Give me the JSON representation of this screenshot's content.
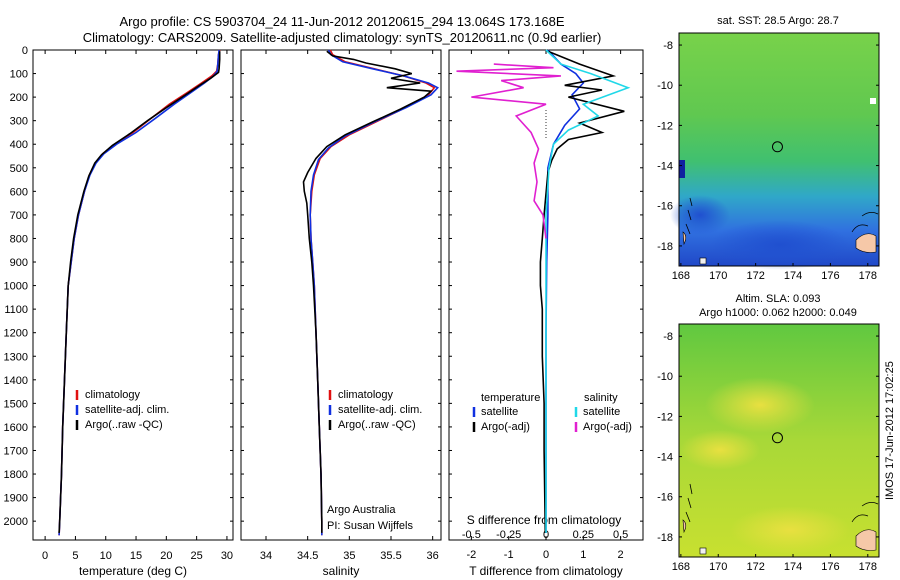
{
  "header": {
    "line1": "Argo profile: CS 5903704_24 11-Jun-2012 20120615_294 13.064S 173.168E",
    "line2": "Climatology: CARS2009. Satellite-adjusted climatology: synTS_20120611.nc (0.9d earlier)"
  },
  "colors": {
    "climatology": "#e01010",
    "satellite": "#1030e0",
    "argo": "#000000",
    "sal_satellite": "#20d8e8",
    "sal_argo": "#e020d0"
  },
  "depth_axis": {
    "ticks": [
      0,
      100,
      200,
      300,
      400,
      500,
      600,
      700,
      800,
      900,
      1000,
      1100,
      1200,
      1300,
      1400,
      1500,
      1600,
      1700,
      1800,
      1900,
      2000
    ]
  },
  "chart_data": [
    {
      "type": "line",
      "name": "temperature-profile",
      "xlabel": "temperature (deg C)",
      "xticks": [
        0,
        5,
        10,
        15,
        20,
        25,
        30
      ],
      "xlim": [
        -2,
        31
      ],
      "ylim": [
        0,
        2080
      ],
      "legend": [
        "climatology",
        "satellite-adj. clim.",
        "Argo(..raw -QC)"
      ],
      "series": [
        {
          "name": "climatology",
          "color": "#e01010",
          "points": [
            [
              28.8,
              0
            ],
            [
              28.6,
              20
            ],
            [
              28.5,
              60
            ],
            [
              28.3,
              90
            ],
            [
              27.5,
              110
            ],
            [
              25.8,
              140
            ],
            [
              23.5,
              180
            ],
            [
              20.5,
              230
            ],
            [
              17.5,
              290
            ],
            [
              14.5,
              350
            ],
            [
              11.5,
              400
            ],
            [
              9.5,
              440
            ],
            [
              8.3,
              480
            ],
            [
              7.3,
              530
            ],
            [
              6.5,
              600
            ],
            [
              5.5,
              700
            ],
            [
              4.8,
              800
            ],
            [
              4.3,
              900
            ],
            [
              3.8,
              1000
            ],
            [
              3.5,
              1200
            ],
            [
              3.2,
              1400
            ],
            [
              2.9,
              1600
            ],
            [
              2.7,
              1800
            ],
            [
              2.4,
              2000
            ],
            [
              2.3,
              2060
            ]
          ]
        },
        {
          "name": "satellite-adj. clim.",
          "color": "#1030e0",
          "points": [
            [
              28.7,
              0
            ],
            [
              28.6,
              20
            ],
            [
              28.5,
              60
            ],
            [
              28.4,
              90
            ],
            [
              27.8,
              110
            ],
            [
              26.3,
              140
            ],
            [
              24.1,
              180
            ],
            [
              21.3,
              230
            ],
            [
              18.2,
              290
            ],
            [
              15.0,
              350
            ],
            [
              11.8,
              400
            ],
            [
              9.7,
              440
            ],
            [
              8.4,
              480
            ],
            [
              7.4,
              530
            ],
            [
              6.5,
              600
            ],
            [
              5.5,
              700
            ],
            [
              4.8,
              800
            ],
            [
              4.3,
              900
            ],
            [
              3.8,
              1000
            ],
            [
              3.5,
              1200
            ],
            [
              3.2,
              1400
            ],
            [
              2.9,
              1600
            ],
            [
              2.7,
              1800
            ],
            [
              2.4,
              2000
            ],
            [
              2.3,
              2060
            ]
          ]
        },
        {
          "name": "Argo(..raw -QC)",
          "color": "#000000",
          "points": [
            [
              28.8,
              5
            ],
            [
              28.8,
              40
            ],
            [
              28.7,
              80
            ],
            [
              28.6,
              95
            ],
            [
              27.3,
              120
            ],
            [
              25.5,
              150
            ],
            [
              23.2,
              190
            ],
            [
              20.0,
              245
            ],
            [
              16.9,
              300
            ],
            [
              14.0,
              355
            ],
            [
              11.1,
              405
            ],
            [
              9.3,
              445
            ],
            [
              8.2,
              480
            ],
            [
              7.2,
              535
            ],
            [
              6.4,
              600
            ],
            [
              5.4,
              700
            ],
            [
              4.7,
              800
            ],
            [
              4.2,
              900
            ],
            [
              3.8,
              1000
            ],
            [
              3.5,
              1200
            ],
            [
              3.2,
              1400
            ],
            [
              2.9,
              1600
            ],
            [
              2.7,
              1800
            ],
            [
              2.4,
              2000
            ],
            [
              2.3,
              2050
            ]
          ]
        }
      ]
    },
    {
      "type": "line",
      "name": "salinity-profile",
      "xlabel": "salinity",
      "xticks": [
        34,
        34.5,
        35,
        35.5,
        36
      ],
      "xlim": [
        33.7,
        36.1
      ],
      "ylim": [
        0,
        2080
      ],
      "legend": [
        "climatology",
        "satellite-adj. clim.",
        "Argo(..raw -QC)"
      ],
      "series": [
        {
          "name": "climatology",
          "color": "#e01010",
          "points": [
            [
              34.77,
              0
            ],
            [
              34.8,
              20
            ],
            [
              34.95,
              50
            ],
            [
              35.3,
              80
            ],
            [
              35.65,
              110
            ],
            [
              35.92,
              140
            ],
            [
              36.02,
              160
            ],
            [
              35.95,
              190
            ],
            [
              35.7,
              240
            ],
            [
              35.35,
              300
            ],
            [
              35.0,
              360
            ],
            [
              34.78,
              410
            ],
            [
              34.65,
              460
            ],
            [
              34.58,
              530
            ],
            [
              34.55,
              600
            ],
            [
              34.53,
              700
            ],
            [
              34.54,
              800
            ],
            [
              34.56,
              900
            ],
            [
              34.58,
              1000
            ],
            [
              34.6,
              1200
            ],
            [
              34.62,
              1400
            ],
            [
              34.64,
              1600
            ],
            [
              34.66,
              1800
            ],
            [
              34.67,
              2000
            ],
            [
              34.67,
              2060
            ]
          ]
        },
        {
          "name": "satellite-adj. clim.",
          "color": "#1030e0",
          "points": [
            [
              34.75,
              0
            ],
            [
              34.78,
              20
            ],
            [
              34.92,
              50
            ],
            [
              35.28,
              80
            ],
            [
              35.65,
              110
            ],
            [
              35.95,
              140
            ],
            [
              36.06,
              160
            ],
            [
              35.98,
              190
            ],
            [
              35.68,
              245
            ],
            [
              35.3,
              305
            ],
            [
              34.95,
              365
            ],
            [
              34.75,
              415
            ],
            [
              34.63,
              465
            ],
            [
              34.57,
              530
            ],
            [
              34.54,
              600
            ],
            [
              34.53,
              700
            ],
            [
              34.54,
              800
            ],
            [
              34.56,
              900
            ],
            [
              34.58,
              1000
            ],
            [
              34.6,
              1200
            ],
            [
              34.62,
              1400
            ],
            [
              34.64,
              1600
            ],
            [
              34.66,
              1800
            ],
            [
              34.67,
              2000
            ],
            [
              34.67,
              2060
            ]
          ]
        },
        {
          "name": "Argo(..raw -QC)",
          "color": "#000000",
          "points": [
            [
              34.73,
              5
            ],
            [
              34.8,
              25
            ],
            [
              35.05,
              40
            ],
            [
              35.2,
              55
            ],
            [
              35.55,
              80
            ],
            [
              35.75,
              100
            ],
            [
              35.5,
              120
            ],
            [
              35.85,
              140
            ],
            [
              35.45,
              160
            ],
            [
              35.98,
              175
            ],
            [
              35.9,
              200
            ],
            [
              35.62,
              250
            ],
            [
              35.28,
              305
            ],
            [
              34.95,
              360
            ],
            [
              34.73,
              410
            ],
            [
              34.6,
              460
            ],
            [
              34.5,
              520
            ],
            [
              34.45,
              560
            ],
            [
              34.46,
              600
            ],
            [
              34.49,
              650
            ],
            [
              34.5,
              700
            ],
            [
              34.52,
              800
            ],
            [
              34.55,
              900
            ],
            [
              34.57,
              1000
            ],
            [
              34.6,
              1200
            ],
            [
              34.62,
              1400
            ],
            [
              34.64,
              1600
            ],
            [
              34.66,
              1800
            ],
            [
              34.67,
              2000
            ],
            [
              34.67,
              2050
            ]
          ]
        }
      ]
    },
    {
      "type": "line",
      "name": "difference-profile",
      "xlabel": "T difference from climatology",
      "x2label": "S difference from climatology",
      "xticks": [
        -2,
        -1,
        0,
        1,
        2
      ],
      "x2ticks": [
        -0.5,
        -0.25,
        0,
        0.25,
        0.5
      ],
      "x2tick_labels": [
        "-0.5",
        "-0.25",
        "0",
        "0.25",
        "0.5"
      ],
      "xlim": [
        -2.6,
        2.6
      ],
      "ylim": [
        0,
        2080
      ],
      "legend_left": {
        "title": "temperature",
        "items": [
          "satellite",
          "Argo(-adj)"
        ]
      },
      "legend_right": {
        "title": "salinity",
        "items": [
          "satellite",
          "Argo(-adj)"
        ]
      },
      "series": [
        {
          "name": "T satellite",
          "color": "#1030e0",
          "points": [
            [
              0.05,
              0
            ],
            [
              0.4,
              60
            ],
            [
              0.8,
              100
            ],
            [
              1.0,
              140
            ],
            [
              0.7,
              190
            ],
            [
              0.9,
              250
            ],
            [
              0.5,
              320
            ],
            [
              0.2,
              400
            ],
            [
              0.05,
              500
            ],
            [
              0.05,
              700
            ],
            [
              0.02,
              900
            ],
            [
              0,
              1200
            ],
            [
              0,
              1600
            ],
            [
              0,
              2050
            ]
          ]
        },
        {
          "name": "T Argo(-adj)",
          "color": "#000000",
          "points": [
            [
              0.05,
              5
            ],
            [
              0.9,
              60
            ],
            [
              1.8,
              110
            ],
            [
              0.5,
              150
            ],
            [
              1.5,
              170
            ],
            [
              0.6,
              200
            ],
            [
              2.1,
              260
            ],
            [
              0.9,
              310
            ],
            [
              1.5,
              350
            ],
            [
              0.6,
              380
            ],
            [
              0.3,
              420
            ],
            [
              0.15,
              470
            ],
            [
              0.05,
              520
            ],
            [
              -0.05,
              700
            ],
            [
              -0.1,
              800
            ],
            [
              -0.15,
              900
            ],
            [
              -0.15,
              1000
            ],
            [
              -0.1,
              1100
            ],
            [
              -0.1,
              1300
            ],
            [
              -0.05,
              1500
            ],
            [
              -0.05,
              1700
            ],
            [
              -0.02,
              2050
            ]
          ]
        },
        {
          "name": "S satellite",
          "color": "#20d8e8",
          "points": [
            [
              0.0,
              0
            ],
            [
              0.1,
              60
            ],
            [
              0.3,
              100
            ],
            [
              0.55,
              160
            ],
            [
              0.25,
              230
            ],
            [
              0.35,
              280
            ],
            [
              0.15,
              340
            ],
            [
              0.05,
              400
            ],
            [
              0.02,
              500
            ],
            [
              0.0,
              700
            ],
            [
              0.0,
              1000
            ],
            [
              0.0,
              1500
            ],
            [
              0.0,
              2050
            ]
          ]
        },
        {
          "name": "S Argo(-adj)",
          "color": "#e020d0",
          "points": [
            [
              -0.35,
              60
            ],
            [
              0.05,
              75
            ],
            [
              -0.6,
              90
            ],
            [
              0.1,
              110
            ],
            [
              -0.3,
              130
            ],
            [
              -0.15,
              160
            ],
            [
              -0.5,
              200
            ],
            [
              0.0,
              230
            ],
            [
              -0.2,
              280
            ],
            [
              -0.1,
              350
            ],
            [
              -0.05,
              420
            ],
            [
              -0.08,
              480
            ],
            [
              -0.06,
              560
            ],
            [
              -0.08,
              640
            ],
            [
              -0.02,
              700
            ],
            [
              0.0,
              800
            ]
          ]
        }
      ]
    }
  ],
  "annotations": {
    "institution": "Argo Australia",
    "pi": "PI: Susan Wijffels"
  },
  "maps": [
    {
      "name": "sst-map",
      "title": "sat. SST: 28.5 Argo: 28.7",
      "yticks": [
        -8,
        -10,
        -12,
        -14,
        -16,
        -18
      ],
      "xticks": [
        168,
        170,
        172,
        174,
        176,
        178
      ],
      "float_location": [
        173.168,
        -13.064
      ]
    },
    {
      "name": "sla-map",
      "title1": "Altim. SLA: 0.093",
      "title2": "Argo h1000: 0.062 h2000: 0.049",
      "yticks": [
        -8,
        -10,
        -12,
        -14,
        -16,
        -18
      ],
      "xticks": [
        168,
        170,
        172,
        174,
        176,
        178
      ],
      "float_location": [
        173.168,
        -13.064
      ]
    }
  ],
  "footer": {
    "stamp": "IMOS 17-Jun-2012 17:02:25"
  }
}
